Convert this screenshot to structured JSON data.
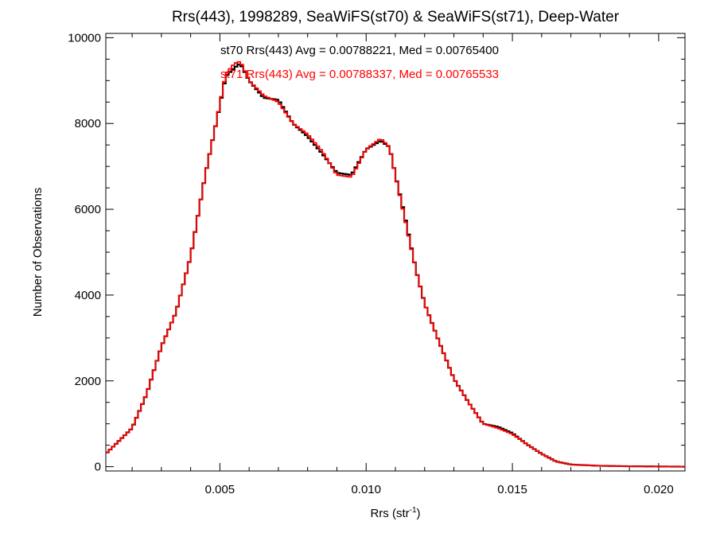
{
  "chart_data": {
    "type": "line",
    "title": "Rrs(443), 1998289, SeaWiFS(st70) & SeaWiFS(st71), Deep-Water",
    "xlabel": "Rrs (str",
    "xlabel_sup": "-1",
    "xlabel_close": ")",
    "ylabel": "Number of Observations",
    "xlim": [
      0.0011,
      0.0209
    ],
    "ylim": [
      -100,
      10100
    ],
    "x_ticks": [
      {
        "value": 0.005,
        "label": "0.005"
      },
      {
        "value": 0.01,
        "label": "0.010"
      },
      {
        "value": 0.015,
        "label": "0.015"
      },
      {
        "value": 0.02,
        "label": "0.020"
      }
    ],
    "y_ticks": [
      {
        "value": 0,
        "label": "0"
      },
      {
        "value": 2000,
        "label": "2000"
      },
      {
        "value": 4000,
        "label": "4000"
      },
      {
        "value": 6000,
        "label": "6000"
      },
      {
        "value": 8000,
        "label": "8000"
      },
      {
        "value": 10000,
        "label": "10000"
      }
    ],
    "x_minor_step": 0.001,
    "y_minor_step": 500,
    "grid": false,
    "annotations": [
      {
        "text": "st70 Rrs(443) Avg = 0.00788221, Med = 0.00765400",
        "color": "#000000"
      },
      {
        "text": "st71 Rrs(443) Avg = 0.00788337, Med = 0.00765533",
        "color": "#ff0000"
      }
    ],
    "series": [
      {
        "color": "#000000",
        "x": [
          0.0011,
          0.002,
          0.0025,
          0.003,
          0.0035,
          0.004,
          0.0045,
          0.0049,
          0.0052,
          0.0055,
          0.0057,
          0.006,
          0.0065,
          0.007,
          0.0075,
          0.008,
          0.0085,
          0.009,
          0.0095,
          0.01,
          0.0105,
          0.0108,
          0.011,
          0.0113,
          0.0117,
          0.012,
          0.0125,
          0.013,
          0.0135,
          0.014,
          0.0145,
          0.015,
          0.0155,
          0.016,
          0.0165,
          0.017,
          0.018,
          0.019,
          0.02,
          0.0209
        ],
        "y": [
          300,
          900,
          1700,
          2800,
          3600,
          4900,
          6800,
          8100,
          9100,
          9300,
          9400,
          9000,
          8600,
          8550,
          8000,
          7700,
          7300,
          6850,
          6800,
          7400,
          7600,
          7450,
          6800,
          5900,
          4600,
          3800,
          2900,
          2050,
          1500,
          1000,
          930,
          780,
          520,
          300,
          120,
          50,
          20,
          10,
          5,
          0
        ]
      },
      {
        "color": "#ff0000",
        "x": [
          0.0011,
          0.002,
          0.0025,
          0.003,
          0.0035,
          0.004,
          0.0045,
          0.0049,
          0.0052,
          0.0055,
          0.0057,
          0.006,
          0.0065,
          0.007,
          0.0075,
          0.008,
          0.0085,
          0.009,
          0.0095,
          0.01,
          0.0105,
          0.0108,
          0.011,
          0.0113,
          0.0117,
          0.012,
          0.0125,
          0.013,
          0.0135,
          0.014,
          0.0145,
          0.015,
          0.0155,
          0.016,
          0.0165,
          0.017,
          0.018,
          0.019,
          0.02,
          0.0209
        ],
        "y": [
          300,
          900,
          1700,
          2800,
          3600,
          4900,
          6800,
          8100,
          9150,
          9400,
          9450,
          9000,
          8650,
          8500,
          8000,
          7750,
          7350,
          6800,
          6750,
          7400,
          7650,
          7450,
          6800,
          5850,
          4600,
          3800,
          2900,
          2050,
          1500,
          1000,
          900,
          760,
          520,
          300,
          120,
          50,
          20,
          10,
          5,
          0
        ]
      }
    ]
  }
}
